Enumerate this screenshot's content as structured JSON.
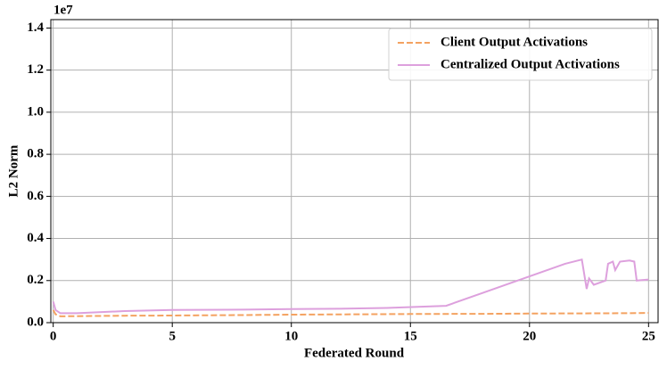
{
  "chart_data": {
    "type": "line",
    "xlabel": "Federated Round",
    "ylabel": "L2 Norm",
    "offset_label": "1e7",
    "xlim": [
      -0.1,
      25.4
    ],
    "ylim": [
      0,
      1.44
    ],
    "xticks": [
      0,
      5,
      10,
      15,
      20,
      25
    ],
    "yticks": [
      {
        "value": 0,
        "label": "0.0"
      },
      0.2,
      0.4,
      0.6,
      0.8,
      {
        "value": 1,
        "label": "1.0"
      },
      1.2,
      1.4
    ],
    "grid": true,
    "legend": "upper right",
    "series": [
      {
        "name": "Client Output Activations",
        "color": "#f4a261",
        "dash": true,
        "x": [
          0,
          0.1,
          0.3,
          1,
          3,
          5,
          8,
          10,
          13,
          15,
          18,
          20,
          22,
          24,
          25
        ],
        "values": [
          0.06,
          0.04,
          0.03,
          0.031,
          0.033,
          0.034,
          0.036,
          0.038,
          0.04,
          0.041,
          0.042,
          0.043,
          0.044,
          0.045,
          0.046
        ]
      },
      {
        "name": "Centralized Output Activations",
        "color": "#dda0dd",
        "dash": false,
        "x": [
          0,
          0.1,
          0.3,
          1,
          3,
          5,
          8,
          10,
          12,
          14,
          16.5,
          18,
          20,
          21.5,
          22.2,
          22.4,
          22.5,
          22.7,
          23.2,
          23.3,
          23.5,
          23.6,
          23.8,
          24.2,
          24.4,
          24.5,
          25
        ],
        "values": [
          0.1,
          0.06,
          0.045,
          0.045,
          0.055,
          0.06,
          0.062,
          0.065,
          0.066,
          0.07,
          0.08,
          0.14,
          0.22,
          0.28,
          0.3,
          0.16,
          0.21,
          0.18,
          0.2,
          0.28,
          0.29,
          0.25,
          0.29,
          0.295,
          0.29,
          0.2,
          0.205
        ]
      }
    ]
  }
}
